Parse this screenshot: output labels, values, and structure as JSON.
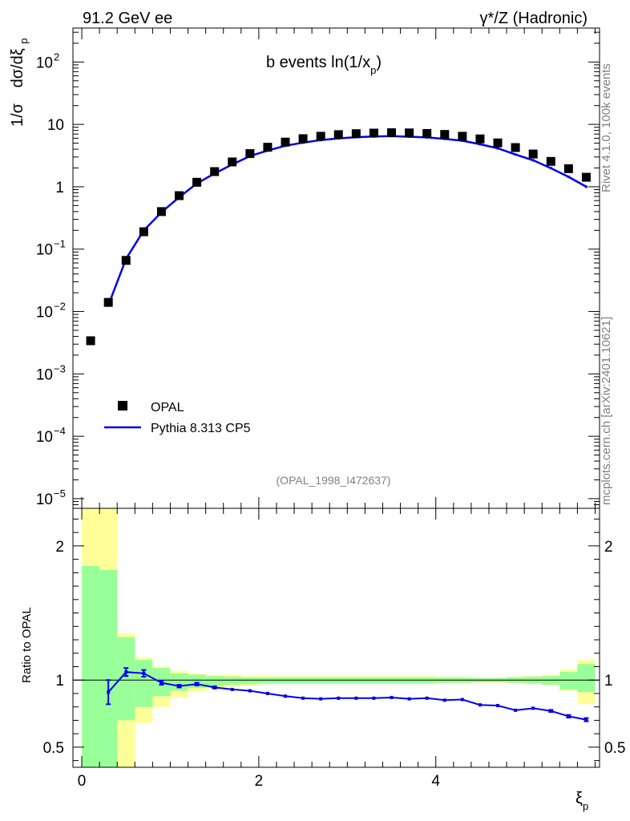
{
  "header": {
    "left": "91.2 GeV ee",
    "right": "γ*/Z (Hadronic)"
  },
  "side_text": {
    "version": "Rivet 4.1.0,  100k events",
    "site": "mcplots.cern.ch [arXiv:2401.10621]"
  },
  "chart_data": [
    {
      "type": "scatter",
      "panel": "main",
      "title": "b events ln(1/x_p)",
      "title_main": "b events ln(1/x",
      "title_sub": "p",
      "title_close": ")",
      "ylabel": "1/σ  dσ/dξ_p",
      "ylabel_prefix": "1/σ",
      "ylabel_main": "dσ/dξ",
      "ylabel_sub": "p",
      "yscale": "log",
      "ylim": [
        7e-06,
        350
      ],
      "xlim": [
        -0.1,
        5.85
      ],
      "x": [
        0.1,
        0.3,
        0.5,
        0.7,
        0.9,
        1.1,
        1.3,
        1.5,
        1.7,
        1.9,
        2.1,
        2.3,
        2.5,
        2.7,
        2.9,
        3.1,
        3.3,
        3.5,
        3.7,
        3.9,
        4.1,
        4.3,
        4.5,
        4.7,
        4.9,
        5.1,
        5.3,
        5.5,
        5.7
      ],
      "series": [
        {
          "name": "OPAL",
          "style": "markers",
          "color": "#000000",
          "values": [
            0.0034,
            0.014,
            0.066,
            0.19,
            0.4,
            0.72,
            1.18,
            1.75,
            2.5,
            3.4,
            4.3,
            5.2,
            5.9,
            6.45,
            6.85,
            7.1,
            7.25,
            7.35,
            7.3,
            7.15,
            6.9,
            6.45,
            5.85,
            5.05,
            4.25,
            3.35,
            2.55,
            1.95,
            1.42
          ]
        },
        {
          "name": "Pythia 8.313 CP5",
          "style": "line",
          "color": "#0000ee",
          "x": [
            0.3,
            0.5,
            0.7,
            0.9,
            1.1,
            1.3,
            1.5,
            1.7,
            1.9,
            2.1,
            2.3,
            2.5,
            2.7,
            2.9,
            3.1,
            3.3,
            3.5,
            3.7,
            3.9,
            4.1,
            4.3,
            4.5,
            4.7,
            4.9,
            5.1,
            5.3,
            5.5,
            5.7
          ],
          "values": [
            0.0126,
            0.07,
            0.199,
            0.39,
            0.68,
            1.13,
            1.63,
            2.28,
            3.1,
            3.8,
            4.54,
            5.1,
            5.6,
            5.97,
            6.24,
            6.39,
            6.5,
            6.35,
            6.18,
            5.86,
            5.48,
            4.81,
            4.13,
            3.29,
            2.66,
            1.99,
            1.44,
            1.0
          ]
        }
      ],
      "yticks": [
        {
          "value": 1e-05,
          "label": "10",
          "exp": "−5"
        },
        {
          "value": 0.0001,
          "label": "10",
          "exp": "−4"
        },
        {
          "value": 0.001,
          "label": "10",
          "exp": "−3"
        },
        {
          "value": 0.01,
          "label": "10",
          "exp": "−2"
        },
        {
          "value": 0.1,
          "label": "10",
          "exp": "−1"
        },
        {
          "value": 1,
          "label": "1",
          "exp": ""
        },
        {
          "value": 10,
          "label": "10",
          "exp": ""
        },
        {
          "value": 100,
          "label": "10",
          "exp": "2"
        }
      ],
      "legend": {
        "position": "bottom-left",
        "entries": [
          {
            "label": "OPAL",
            "marker": "square"
          },
          {
            "label": "Pythia 8.313 CP5",
            "marker": "line"
          }
        ]
      },
      "annotation": "(OPAL_1998_I472637)"
    },
    {
      "type": "line",
      "panel": "ratio",
      "ylabel": "Ratio to OPAL",
      "xlabel": "ξ_p",
      "xlabel_main": "ξ",
      "xlabel_sub": "p",
      "ylim": [
        0.35,
        2.28
      ],
      "xlim": [
        -0.1,
        5.85
      ],
      "yticks": [
        {
          "value": 0.5,
          "label": "0.5"
        },
        {
          "value": 1,
          "label": "1"
        },
        {
          "value": 2,
          "label": "2"
        }
      ],
      "xticks": [
        {
          "value": 0,
          "label": "0"
        },
        {
          "value": 2,
          "label": "2"
        },
        {
          "value": 4,
          "label": "4"
        }
      ],
      "bin_edges": [
        0.0,
        0.2,
        0.4,
        0.6,
        0.8,
        1.0,
        1.2,
        1.4,
        1.6,
        1.8,
        2.0,
        2.2,
        2.4,
        2.6,
        2.8,
        3.0,
        3.2,
        3.4,
        3.6,
        3.8,
        4.0,
        4.2,
        4.4,
        4.6,
        4.8,
        5.0,
        5.2,
        5.4,
        5.6,
        5.8
      ],
      "band_yellow": [
        [
          0.0,
          2.28
        ],
        [
          0.0,
          2.28
        ],
        [
          0.35,
          1.35
        ],
        [
          0.68,
          1.17
        ],
        [
          0.8,
          1.1
        ],
        [
          0.87,
          1.07
        ],
        [
          0.91,
          1.05
        ],
        [
          0.93,
          1.04
        ],
        [
          0.95,
          1.04
        ],
        [
          0.96,
          1.03
        ],
        [
          0.97,
          1.03
        ],
        [
          0.97,
          1.03
        ],
        [
          0.97,
          1.03
        ],
        [
          0.97,
          1.03
        ],
        [
          0.97,
          1.03
        ],
        [
          0.97,
          1.03
        ],
        [
          0.97,
          1.03
        ],
        [
          0.97,
          1.03
        ],
        [
          0.97,
          1.03
        ],
        [
          0.97,
          1.03
        ],
        [
          0.975,
          1.025
        ],
        [
          0.975,
          1.025
        ],
        [
          0.98,
          1.02
        ],
        [
          0.98,
          1.02
        ],
        [
          0.975,
          1.025
        ],
        [
          0.97,
          1.03
        ],
        [
          0.96,
          1.04
        ],
        [
          0.92,
          1.08
        ],
        [
          0.82,
          1.15
        ]
      ],
      "band_green": [
        [
          0.0,
          1.85
        ],
        [
          0.0,
          1.82
        ],
        [
          0.7,
          1.32
        ],
        [
          0.8,
          1.15
        ],
        [
          0.88,
          1.09
        ],
        [
          0.92,
          1.05
        ],
        [
          0.94,
          1.04
        ],
        [
          0.955,
          1.03
        ],
        [
          0.965,
          1.025
        ],
        [
          0.97,
          1.02
        ],
        [
          0.975,
          1.02
        ],
        [
          0.975,
          1.02
        ],
        [
          0.975,
          1.02
        ],
        [
          0.975,
          1.02
        ],
        [
          0.975,
          1.02
        ],
        [
          0.975,
          1.02
        ],
        [
          0.975,
          1.02
        ],
        [
          0.975,
          1.02
        ],
        [
          0.975,
          1.02
        ],
        [
          0.975,
          1.02
        ],
        [
          0.98,
          1.018
        ],
        [
          0.98,
          1.018
        ],
        [
          0.985,
          1.015
        ],
        [
          0.985,
          1.015
        ],
        [
          0.98,
          1.02
        ],
        [
          0.975,
          1.025
        ],
        [
          0.965,
          1.03
        ],
        [
          0.93,
          1.06
        ],
        [
          0.91,
          1.12
        ]
      ],
      "series": [
        {
          "name": "Pythia 8.313 CP5 / OPAL",
          "color": "#0000ee",
          "x": [
            0.3,
            0.5,
            0.7,
            0.9,
            1.1,
            1.3,
            1.5,
            1.7,
            1.9,
            2.1,
            2.3,
            2.5,
            2.7,
            2.9,
            3.1,
            3.3,
            3.5,
            3.7,
            3.9,
            4.1,
            4.3,
            4.5,
            4.7,
            4.9,
            5.1,
            5.3,
            5.5,
            5.7
          ],
          "values": [
            0.91,
            1.06,
            1.05,
            0.98,
            0.955,
            0.97,
            0.945,
            0.93,
            0.92,
            0.9,
            0.88,
            0.865,
            0.86,
            0.865,
            0.865,
            0.865,
            0.87,
            0.86,
            0.865,
            0.85,
            0.855,
            0.815,
            0.81,
            0.775,
            0.79,
            0.77,
            0.73,
            0.705
          ],
          "err": [
            0.09,
            0.03,
            0.025,
            0.015,
            0.01,
            0.01,
            0.008,
            0.006,
            0.005,
            0.005,
            0.005,
            0.005,
            0.005,
            0.005,
            0.005,
            0.005,
            0.005,
            0.005,
            0.005,
            0.005,
            0.005,
            0.005,
            0.005,
            0.005,
            0.006,
            0.008,
            0.01,
            0.012
          ]
        }
      ]
    }
  ]
}
